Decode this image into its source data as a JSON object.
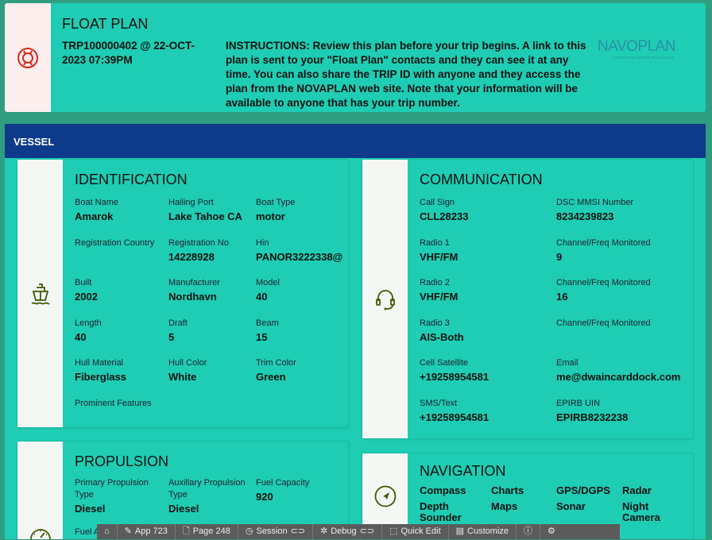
{
  "header": {
    "title": "FLOAT PLAN",
    "trip": "TRP100000402 @ 22-OCT-2023 07:39PM",
    "instructions": "INSTRUCTIONS: Review this plan before your trip begins. A link to this plan is sent to your \"Float Plan\" contacts and they can see it at any time. You can also share the TRIP ID with anyone and they access the plan from the NOVAPLAN web site. Note that your information will be available to anyone that has your trip number.",
    "logo": "NAVOPLAN",
    "logo_tagline": "ACHIEVING SAFER PASSAGES",
    "icon": "lifebuoy-icon"
  },
  "vessel": {
    "title": "VESSEL"
  },
  "identification": {
    "title": "IDENTIFICATION",
    "icon": "ship-icon",
    "fields": [
      {
        "label": "Boat Name",
        "value": "Amarok"
      },
      {
        "label": "Hailing Port",
        "value": "Lake Tahoe CA"
      },
      {
        "label": "Boat Type",
        "value": "motor"
      },
      {
        "label": "Registration Country",
        "value": ""
      },
      {
        "label": "Registration No",
        "value": "14228928"
      },
      {
        "label": "Hin",
        "value": "PANOR3222338@"
      },
      {
        "label": "Built",
        "value": "2002"
      },
      {
        "label": "Manufacturer",
        "value": "Nordhavn"
      },
      {
        "label": "Model",
        "value": "40"
      },
      {
        "label": "Length",
        "value": "40"
      },
      {
        "label": "Draft",
        "value": "5"
      },
      {
        "label": "Beam",
        "value": "15"
      },
      {
        "label": "Hull Material",
        "value": "Fiberglass"
      },
      {
        "label": "Hull Color",
        "value": "White"
      },
      {
        "label": "Trim Color",
        "value": "Green"
      },
      {
        "label": "Prominent Features",
        "value": ""
      }
    ]
  },
  "communication": {
    "title": "COMMUNICATION",
    "icon": "headset-icon",
    "fields": [
      {
        "label": "Call Sign",
        "value": "CLL28233"
      },
      {
        "label": "DSC MMSI Number",
        "value": "8234239823"
      },
      {
        "label": "Radio 1",
        "value": "VHF/FM"
      },
      {
        "label": "Channel/Freq Monitored",
        "value": "9"
      },
      {
        "label": "Radio 2",
        "value": "VHF/FM"
      },
      {
        "label": "Channel/Freq Monitored",
        "value": "16"
      },
      {
        "label": "Radio 3",
        "value": "AIS-Both"
      },
      {
        "label": "Channel/Freq Monitored",
        "value": ""
      },
      {
        "label": "Cell Satellite",
        "value": "+19258954581"
      },
      {
        "label": "Email",
        "value": "me@dwaincarddock.com"
      },
      {
        "label": "SMS/Text",
        "value": "+19258954581"
      },
      {
        "label": "EPIRB UIN",
        "value": "EPIRB8232238"
      }
    ]
  },
  "propulsion": {
    "title": "PROPULSION",
    "icon": "gauge-icon",
    "fields": [
      {
        "label": "Primary Propulsion Type",
        "value": "Diesel"
      },
      {
        "label": "Auxillary Propulsion Type",
        "value": "Diesel"
      },
      {
        "label": "Fuel Capacity",
        "value": "920"
      },
      {
        "label": "Fuel A",
        "value": ""
      }
    ]
  },
  "navigation": {
    "title": "NAVIGATION",
    "icon": "compass-icon",
    "items": [
      "Compass",
      "Charts",
      "GPS/DGPS",
      "Radar",
      "Depth Sounder",
      "Maps",
      "Sonar",
      "Night Camera"
    ]
  },
  "devbar": [
    "App 723",
    "Page 248",
    "Session",
    "Debug",
    "Quick Edit",
    "Customize"
  ]
}
